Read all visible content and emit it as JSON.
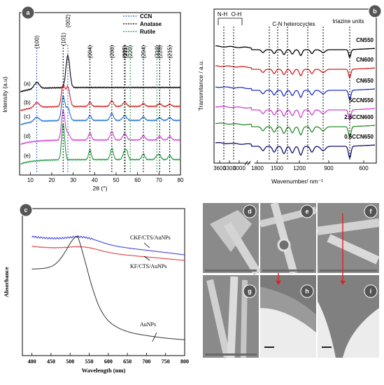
{
  "chart_data": [
    {
      "panel": "a",
      "type": "line",
      "xlabel": "2θ (°)",
      "ylabel": "Intensity (a.u)",
      "xlim": [
        5,
        80
      ],
      "xticks": [
        10,
        20,
        30,
        40,
        50,
        60,
        70,
        80
      ],
      "legend": {
        "placement": "top-right",
        "entries": [
          {
            "name": "CCN",
            "color": "#2f5fd0"
          },
          {
            "name": "Anatase",
            "color": "#000000"
          },
          {
            "name": "Rutile",
            "color": "#1e9a3c"
          }
        ]
      },
      "series": [
        {
          "name": "(a)",
          "color": "#000000"
        },
        {
          "name": "(b)",
          "color": "#d02020"
        },
        {
          "name": "(c)",
          "color": "#2070d0"
        },
        {
          "name": "(d)",
          "color": "#d040d0"
        },
        {
          "name": "(e)",
          "color": "#1e9a3c"
        }
      ],
      "annotations": [
        {
          "label": "(100)",
          "x": 13.0,
          "color": "#2f5fd0"
        },
        {
          "label": "(101)",
          "x": 25.3,
          "color": "#000000"
        },
        {
          "label": "(002)",
          "x": 27.5,
          "color": "#2f5fd0"
        },
        {
          "label": "(004)",
          "x": 37.8,
          "color": "#000000"
        },
        {
          "label": "(200)",
          "x": 48.0,
          "color": "#000000"
        },
        {
          "label": "(105)",
          "x": 53.9,
          "color": "#000000"
        },
        {
          "label": "(211)",
          "x": 54.3,
          "color": "#1e9a3c"
        },
        {
          "label": "(220)",
          "x": 56.6,
          "color": "#1e9a3c"
        },
        {
          "label": "(204)",
          "x": 62.7,
          "color": "#000000"
        },
        {
          "label": "(310)",
          "x": 69.0,
          "color": "#1e9a3c"
        },
        {
          "label": "(220)",
          "x": 70.3,
          "color": "#000000"
        },
        {
          "label": "(215)",
          "x": 75.0,
          "color": "#000000"
        }
      ]
    },
    {
      "panel": "b",
      "type": "line",
      "xlabel": "Wavenumber/ nm⁻¹",
      "ylabel": "Transmitance / a.u.",
      "xticks": [
        "3600",
        "3300",
        "3000",
        "1800",
        "1500",
        "1200",
        "900",
        "600"
      ],
      "annotations": [
        "N-H",
        "O-H",
        "C-N heterocycles",
        "triazine units"
      ],
      "series": [
        {
          "name": "CN550",
          "color": "#000000"
        },
        {
          "name": "CN600",
          "color": "#d02020"
        },
        {
          "name": "CN650",
          "color": "#2030c0"
        },
        {
          "name": "5CCN550",
          "color": "#d040d0"
        },
        {
          "name": "2.5CCN600",
          "color": "#2a8a2a"
        },
        {
          "name": "0.5CCN650",
          "color": "#101070"
        }
      ]
    },
    {
      "panel": "c",
      "type": "line",
      "xlabel": "Wavelength (nm)",
      "ylabel": "Absorbance",
      "xlim": [
        375,
        800
      ],
      "xticks": [
        400,
        450,
        500,
        550,
        600,
        650,
        700,
        750,
        800
      ],
      "series": [
        {
          "name": "CKF/CTS/AuNPs",
          "color": "#3a3adc"
        },
        {
          "name": "KF/CTS/AuNPs",
          "color": "#e03030"
        },
        {
          "name": "AuNPs",
          "color": "#333333"
        }
      ]
    }
  ],
  "panels": {
    "a": "a",
    "b": "b",
    "c": "c",
    "d": "d",
    "e": "e",
    "f": "f",
    "g": "g",
    "h": "h",
    "i": "i"
  }
}
